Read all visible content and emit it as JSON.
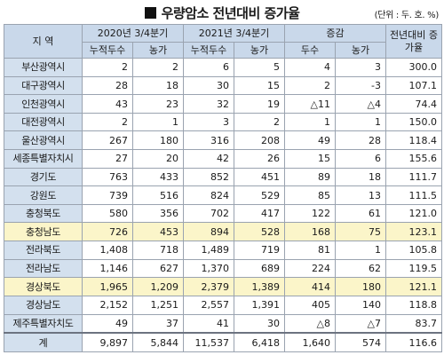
{
  "title": "우량암소 전년대비 증가율",
  "unit": "(단위 : 두. 호. %)",
  "headers": {
    "region": "지 역",
    "period_2020": "2020년 3/4분기",
    "period_2021": "2021년 3/4분기",
    "change": "증감",
    "rate": "전년대비 증가율",
    "cumulative_heads": "누적두수",
    "farms": "농가",
    "heads": "두수"
  },
  "rows": [
    {
      "region": "부산광역시",
      "c2020": "2",
      "f2020": "2",
      "c2021": "6",
      "f2021": "5",
      "dHeads": "4",
      "dFarms": "3",
      "rate": "300.0"
    },
    {
      "region": "대구광역시",
      "c2020": "28",
      "f2020": "18",
      "c2021": "30",
      "f2021": "15",
      "dHeads": "2",
      "dFarms": "-3",
      "rate": "107.1"
    },
    {
      "region": "인천광역시",
      "c2020": "43",
      "f2020": "23",
      "c2021": "32",
      "f2021": "19",
      "dHeads": "△11",
      "dFarms": "△4",
      "rate": "74.4"
    },
    {
      "region": "대전광역시",
      "c2020": "2",
      "f2020": "1",
      "c2021": "3",
      "f2021": "2",
      "dHeads": "1",
      "dFarms": "1",
      "rate": "150.0"
    },
    {
      "region": "울산광역시",
      "c2020": "267",
      "f2020": "180",
      "c2021": "316",
      "f2021": "208",
      "dHeads": "49",
      "dFarms": "28",
      "rate": "118.4"
    },
    {
      "region": "세종특별자치시",
      "c2020": "27",
      "f2020": "20",
      "c2021": "42",
      "f2021": "26",
      "dHeads": "15",
      "dFarms": "6",
      "rate": "155.6"
    },
    {
      "region": "경기도",
      "c2020": "763",
      "f2020": "433",
      "c2021": "852",
      "f2021": "451",
      "dHeads": "89",
      "dFarms": "18",
      "rate": "111.7"
    },
    {
      "region": "강원도",
      "c2020": "739",
      "f2020": "516",
      "c2021": "824",
      "f2021": "529",
      "dHeads": "85",
      "dFarms": "13",
      "rate": "111.5"
    },
    {
      "region": "충청북도",
      "c2020": "580",
      "f2020": "356",
      "c2021": "702",
      "f2021": "417",
      "dHeads": "122",
      "dFarms": "61",
      "rate": "121.0"
    },
    {
      "region": "충청남도",
      "c2020": "726",
      "f2020": "453",
      "c2021": "894",
      "f2021": "528",
      "dHeads": "168",
      "dFarms": "75",
      "rate": "123.1",
      "highlight": true
    },
    {
      "region": "전라북도",
      "c2020": "1,408",
      "f2020": "718",
      "c2021": "1,489",
      "f2021": "719",
      "dHeads": "81",
      "dFarms": "1",
      "rate": "105.8"
    },
    {
      "region": "전라남도",
      "c2020": "1,146",
      "f2020": "627",
      "c2021": "1,370",
      "f2021": "689",
      "dHeads": "224",
      "dFarms": "62",
      "rate": "119.5"
    },
    {
      "region": "경상북도",
      "c2020": "1,965",
      "f2020": "1,209",
      "c2021": "2,379",
      "f2021": "1,389",
      "dHeads": "414",
      "dFarms": "180",
      "rate": "121.1",
      "highlight": true
    },
    {
      "region": "경상남도",
      "c2020": "2,152",
      "f2020": "1,251",
      "c2021": "2,557",
      "f2021": "1,391",
      "dHeads": "405",
      "dFarms": "140",
      "rate": "118.8"
    },
    {
      "region": "제주특별자치도",
      "c2020": "49",
      "f2020": "37",
      "c2021": "41",
      "f2021": "30",
      "dHeads": "△8",
      "dFarms": "△7",
      "rate": "83.7"
    },
    {
      "region": "계",
      "c2020": "9,897",
      "f2020": "5,844",
      "c2021": "11,537",
      "f2021": "6,418",
      "dHeads": "1,640",
      "dFarms": "574",
      "rate": "116.6",
      "total": true
    }
  ],
  "colors": {
    "header_bg": "#c9d8ea",
    "region_bg": "#d3e0ee",
    "highlight_bg": "#fbf5c9",
    "border": "#9aa3b0"
  }
}
